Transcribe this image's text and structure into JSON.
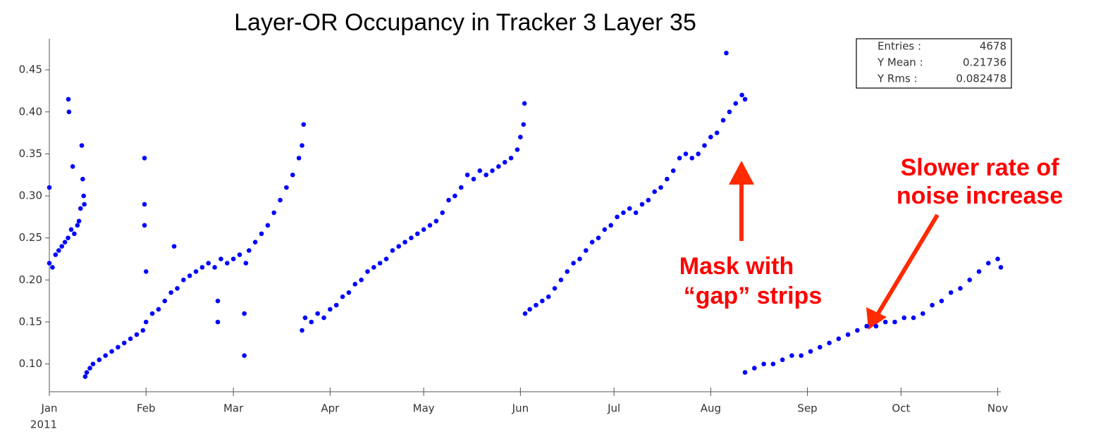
{
  "chart_data": {
    "type": "scatter",
    "title": "Layer-OR Occupancy in Tracker 3 Layer 35",
    "year_label": "2011",
    "color": "#0000ff",
    "grid": false,
    "xlim": [
      0,
      305
    ],
    "ylim": [
      0.067,
      0.487
    ],
    "xticks": [
      {
        "value": 0,
        "label": "Jan"
      },
      {
        "value": 31,
        "label": "Feb"
      },
      {
        "value": 59,
        "label": "Mar"
      },
      {
        "value": 90,
        "label": "Apr"
      },
      {
        "value": 120,
        "label": "May"
      },
      {
        "value": 151,
        "label": "Jun"
      },
      {
        "value": 181,
        "label": "Jul"
      },
      {
        "value": 212,
        "label": "Aug"
      },
      {
        "value": 243,
        "label": "Sep"
      },
      {
        "value": 273,
        "label": "Oct"
      },
      {
        "value": 304,
        "label": "Nov"
      }
    ],
    "yticks": [
      {
        "value": 0.1,
        "label": "0.10"
      },
      0.15,
      {
        "value": 0.2,
        "label": "0.20"
      },
      0.25,
      {
        "value": 0.3,
        "label": "0.30"
      },
      0.35,
      {
        "value": 0.4,
        "label": "0.40"
      },
      0.45
    ],
    "stats": [
      {
        "label": "Entries :",
        "value": 4678
      },
      {
        "label": "Y Mean :",
        "value": 0.21736
      },
      {
        "label": "Y Rms :",
        "value": 0.082478
      }
    ],
    "annotations": [
      {
        "lines": [
          "Slower rate of",
          "noise increase"
        ]
      },
      {
        "lines": [
          "Mask with",
          "“gap” strips"
        ]
      }
    ],
    "x": [
      0,
      0,
      1,
      2,
      3,
      4,
      5,
      6,
      6.1,
      6.3,
      7,
      7.5,
      8,
      9,
      9.5,
      10,
      10.4,
      10.7,
      11,
      11.2,
      11.5,
      12,
      13,
      14,
      16,
      18,
      20,
      22,
      24,
      26,
      28,
      30,
      30.5,
      30.5,
      30.5,
      31,
      31,
      33,
      35,
      37,
      39,
      40,
      41,
      43,
      45,
      47,
      49,
      51,
      53,
      54,
      54,
      55,
      57,
      59,
      61,
      62.5,
      62.5,
      63,
      64,
      66,
      68,
      70,
      72,
      74,
      76,
      78,
      80,
      81,
      81.5,
      81,
      82,
      84,
      86,
      88,
      90,
      92,
      94,
      96,
      98,
      100,
      102,
      104,
      106,
      108,
      110,
      112,
      114,
      116,
      118,
      120,
      122,
      124,
      126,
      128,
      130,
      132,
      134,
      136,
      138,
      140,
      142,
      144,
      146,
      148,
      150,
      151,
      152,
      152.3,
      152.5,
      154,
      156,
      158,
      160,
      162,
      164,
      166,
      168,
      170,
      172,
      174,
      176,
      178,
      180,
      182,
      184,
      186,
      188,
      190,
      192,
      194,
      196,
      198,
      200,
      202,
      204,
      206,
      208,
      210,
      212,
      214,
      216,
      217,
      218,
      220,
      222,
      223,
      223,
      226,
      229,
      232,
      235,
      238,
      241,
      244,
      247,
      250,
      253,
      256,
      259,
      262,
      265,
      268,
      271,
      274,
      277,
      280,
      283,
      286,
      289,
      292,
      295,
      298,
      301,
      304,
      305
    ],
    "values": [
      0.22,
      0.31,
      0.215,
      0.23,
      0.235,
      0.24,
      0.245,
      0.25,
      0.415,
      0.4,
      0.26,
      0.335,
      0.255,
      0.265,
      0.27,
      0.285,
      0.36,
      0.32,
      0.3,
      0.29,
      0.085,
      0.09,
      0.095,
      0.1,
      0.105,
      0.11,
      0.115,
      0.12,
      0.125,
      0.13,
      0.135,
      0.14,
      0.29,
      0.265,
      0.345,
      0.15,
      0.21,
      0.16,
      0.165,
      0.175,
      0.185,
      0.24,
      0.19,
      0.2,
      0.205,
      0.21,
      0.215,
      0.22,
      0.215,
      0.15,
      0.175,
      0.225,
      0.22,
      0.225,
      0.23,
      0.11,
      0.16,
      0.22,
      0.235,
      0.245,
      0.255,
      0.265,
      0.28,
      0.295,
      0.31,
      0.325,
      0.345,
      0.36,
      0.385,
      0.14,
      0.155,
      0.15,
      0.16,
      0.155,
      0.165,
      0.17,
      0.18,
      0.185,
      0.195,
      0.2,
      0.21,
      0.215,
      0.22,
      0.225,
      0.235,
      0.24,
      0.245,
      0.25,
      0.255,
      0.26,
      0.265,
      0.27,
      0.28,
      0.295,
      0.3,
      0.31,
      0.325,
      0.32,
      0.33,
      0.325,
      0.33,
      0.335,
      0.34,
      0.345,
      0.355,
      0.37,
      0.385,
      0.41,
      0.16,
      0.165,
      0.17,
      0.175,
      0.18,
      0.19,
      0.2,
      0.21,
      0.22,
      0.225,
      0.235,
      0.245,
      0.25,
      0.26,
      0.265,
      0.275,
      0.28,
      0.285,
      0.28,
      0.29,
      0.295,
      0.305,
      0.31,
      0.32,
      0.33,
      0.345,
      0.35,
      0.345,
      0.35,
      0.36,
      0.37,
      0.375,
      0.39,
      0.47,
      0.4,
      0.41,
      0.42,
      0.415,
      0.09,
      0.095,
      0.1,
      0.1,
      0.105,
      0.11,
      0.11,
      0.115,
      0.12,
      0.125,
      0.13,
      0.135,
      0.14,
      0.145,
      0.145,
      0.15,
      0.15,
      0.155,
      0.155,
      0.16,
      0.17,
      0.175,
      0.185,
      0.19,
      0.2,
      0.21,
      0.22,
      0.225,
      0.215
    ]
  }
}
